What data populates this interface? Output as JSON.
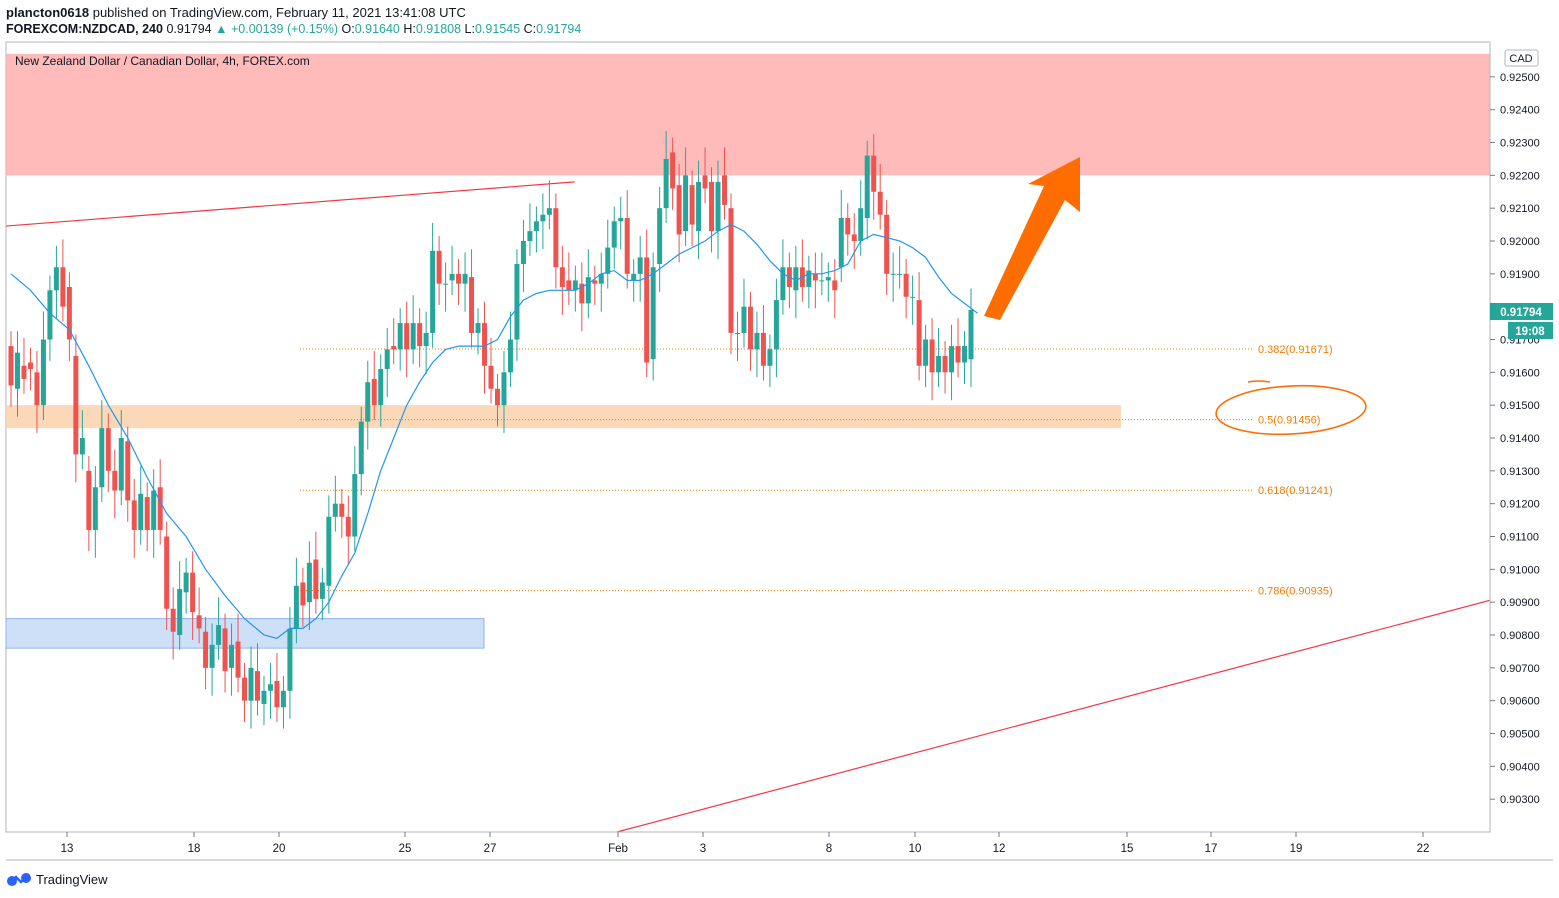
{
  "header": {
    "author": "plancton0618",
    "published_text": "published on TradingView.com, February 11, 2021 13:41:08 UTC",
    "symbol": "FOREXCOM:NZDCAD, 240",
    "last": "0.91794",
    "change": "+0.00139 (+0.15%)",
    "open_label": "O:",
    "open": "0.91640",
    "high_label": "H:",
    "high": "0.91808",
    "low_label": "L:",
    "low": "0.91545",
    "close_label": "C:",
    "close": "0.91794"
  },
  "footer": {
    "brand": "TradingView"
  },
  "colors": {
    "up": "#26a69a",
    "down": "#ef5350",
    "ma": "#2196f3",
    "trendline": "#f23645",
    "resistance_zone": "#ffb3b3",
    "support_zone": "#fad4b0",
    "demand_zone": "#c9dcf7",
    "fib": "#f57c00",
    "arrow": "#ff6d00",
    "price_tag": "#26a69a"
  },
  "chart_data": {
    "type": "candlestick",
    "title": "New Zealand Dollar / Canadian Dollar, 4h, FOREX.com",
    "currency": "CAD",
    "ylim": [
      0.902,
      0.926
    ],
    "y_ticks": [
      "0.92500",
      "0.92400",
      "0.92300",
      "0.92200",
      "0.92100",
      "0.92000",
      "0.91900",
      "0.91700",
      "0.91600",
      "0.91500",
      "0.91400",
      "0.91300",
      "0.91200",
      "0.91100",
      "0.91000",
      "0.90900",
      "0.90800",
      "0.90700",
      "0.90600",
      "0.90500",
      "0.90400",
      "0.90300"
    ],
    "x_ticks": [
      "13",
      "18",
      "20",
      "25",
      "27",
      "Feb",
      "3",
      "8",
      "10",
      "12",
      "15",
      "17",
      "19",
      "22"
    ],
    "last_price": "0.91794",
    "countdown": "19:08",
    "fib_levels": [
      {
        "label": "0.382(0.91671)",
        "price": 0.91671
      },
      {
        "label": "0.5(0.91456)",
        "price": 0.91456
      },
      {
        "label": "0.618(0.91241)",
        "price": 0.91241
      },
      {
        "label": "0.786(0.90935)",
        "price": 0.90935
      }
    ],
    "zones": [
      {
        "name": "resistance",
        "from": 0.922,
        "to": 0.9257
      },
      {
        "name": "support",
        "from": 0.9143,
        "to": 0.915
      },
      {
        "name": "demand",
        "from": 0.9076,
        "to": 0.9085
      }
    ],
    "trendlines": [
      {
        "x": [
          "2021-01-11",
          "2021-01-25"
        ],
        "y": [
          0.9204,
          0.9218
        ]
      },
      {
        "x": [
          "2021-01-26",
          "2021-02-26"
        ],
        "y": [
          0.902,
          0.9126
        ]
      }
    ],
    "candles": [
      [
        0.9168,
        0.9156
      ],
      [
        0.9155,
        0.9166
      ],
      [
        0.9162,
        0.9158
      ],
      [
        0.9163,
        0.9161
      ],
      [
        0.916,
        0.915
      ],
      [
        0.915,
        0.917
      ],
      [
        0.917,
        0.9185
      ],
      [
        0.9185,
        0.9192
      ],
      [
        0.9192,
        0.918
      ],
      [
        0.9186,
        0.917
      ],
      [
        0.9165,
        0.9135
      ],
      [
        0.9135,
        0.914
      ],
      [
        0.913,
        0.9112
      ],
      [
        0.9112,
        0.9125
      ],
      [
        0.9125,
        0.9143
      ],
      [
        0.9143,
        0.913
      ],
      [
        0.913,
        0.9124
      ],
      [
        0.9124,
        0.914
      ],
      [
        0.9139,
        0.9121
      ],
      [
        0.9121,
        0.9112
      ],
      [
        0.9112,
        0.9123
      ],
      [
        0.9122,
        0.9112
      ],
      [
        0.9112,
        0.9124
      ],
      [
        0.9125,
        0.9112
      ],
      [
        0.911,
        0.9088
      ],
      [
        0.9088,
        0.9081
      ],
      [
        0.908,
        0.9094
      ],
      [
        0.9093,
        0.9099
      ],
      [
        0.9099,
        0.9087
      ],
      [
        0.9086,
        0.9082
      ],
      [
        0.9081,
        0.907
      ],
      [
        0.907,
        0.9077
      ],
      [
        0.9077,
        0.9083
      ],
      [
        0.9082,
        0.9069
      ],
      [
        0.907,
        0.9077
      ],
      [
        0.9078,
        0.9067
      ],
      [
        0.9067,
        0.906
      ],
      [
        0.906,
        0.907
      ],
      [
        0.9069,
        0.906
      ],
      [
        0.9059,
        0.9063
      ],
      [
        0.9063,
        0.9065
      ],
      [
        0.9066,
        0.9058
      ],
      [
        0.9058,
        0.9063
      ],
      [
        0.9063,
        0.9082
      ],
      [
        0.9082,
        0.9095
      ],
      [
        0.9096,
        0.9089
      ],
      [
        0.909,
        0.9102
      ],
      [
        0.9103,
        0.9091
      ],
      [
        0.9091,
        0.9096
      ],
      [
        0.9095,
        0.9116
      ],
      [
        0.9116,
        0.912
      ],
      [
        0.912,
        0.9116
      ],
      [
        0.9116,
        0.911
      ],
      [
        0.911,
        0.9129
      ],
      [
        0.9129,
        0.9145
      ],
      [
        0.9145,
        0.9157
      ],
      [
        0.9158,
        0.915
      ],
      [
        0.915,
        0.9161
      ],
      [
        0.9161,
        0.9167
      ],
      [
        0.9168,
        0.9167
      ],
      [
        0.9167,
        0.9175
      ],
      [
        0.9175,
        0.9167
      ],
      [
        0.9167,
        0.9175
      ],
      [
        0.9175,
        0.9168
      ],
      [
        0.9168,
        0.9172
      ],
      [
        0.9172,
        0.9197
      ],
      [
        0.9197,
        0.9187
      ],
      [
        0.9187,
        0.9187
      ],
      [
        0.9188,
        0.919
      ],
      [
        0.919,
        0.9187
      ],
      [
        0.9187,
        0.919
      ],
      [
        0.9189,
        0.9172
      ],
      [
        0.9172,
        0.9175
      ],
      [
        0.9175,
        0.9162
      ],
      [
        0.9162,
        0.9155
      ],
      [
        0.9155,
        0.915
      ],
      [
        0.915,
        0.916
      ],
      [
        0.916,
        0.917
      ],
      [
        0.917,
        0.9193
      ],
      [
        0.9193,
        0.92
      ],
      [
        0.92,
        0.9203
      ],
      [
        0.9203,
        0.9206
      ],
      [
        0.9206,
        0.9208
      ],
      [
        0.9208,
        0.921
      ],
      [
        0.921,
        0.9192
      ],
      [
        0.9192,
        0.9186
      ],
      [
        0.9188,
        0.9185
      ],
      [
        0.9185,
        0.9188
      ],
      [
        0.9187,
        0.9181
      ],
      [
        0.9181,
        0.9189
      ],
      [
        0.9188,
        0.9187
      ],
      [
        0.9187,
        0.919
      ],
      [
        0.919,
        0.9198
      ],
      [
        0.9198,
        0.9206
      ],
      [
        0.9206,
        0.9207
      ],
      [
        0.9207,
        0.919
      ],
      [
        0.9188,
        0.919
      ],
      [
        0.919,
        0.9195
      ],
      [
        0.9195,
        0.9163
      ],
      [
        0.9164,
        0.9192
      ],
      [
        0.9193,
        0.921
      ],
      [
        0.921,
        0.9225
      ],
      [
        0.9227,
        0.9216
      ],
      [
        0.9217,
        0.9202
      ],
      [
        0.9203,
        0.922
      ],
      [
        0.9217,
        0.9205
      ],
      [
        0.9203,
        0.9218
      ],
      [
        0.922,
        0.9216
      ],
      [
        0.9218,
        0.9203
      ],
      [
        0.9203,
        0.9218
      ],
      [
        0.922,
        0.9211
      ],
      [
        0.921,
        0.9172
      ],
      [
        0.9172,
        0.9172
      ],
      [
        0.9172,
        0.918
      ],
      [
        0.918,
        0.9167
      ],
      [
        0.9167,
        0.9172
      ],
      [
        0.9172,
        0.9162
      ],
      [
        0.9162,
        0.9167
      ],
      [
        0.9167,
        0.9182
      ],
      [
        0.9182,
        0.9192
      ],
      [
        0.9192,
        0.9186
      ],
      [
        0.9185,
        0.9192
      ],
      [
        0.9192,
        0.9186
      ],
      [
        0.9186,
        0.9191
      ],
      [
        0.919,
        0.9188
      ],
      [
        0.9188,
        0.9188
      ],
      [
        0.9188,
        0.9189
      ],
      [
        0.9188,
        0.9185
      ],
      [
        0.9192,
        0.9207
      ],
      [
        0.9207,
        0.9202
      ],
      [
        0.9202,
        0.92
      ],
      [
        0.92,
        0.921
      ],
      [
        0.9207,
        0.9226
      ],
      [
        0.9226,
        0.9215
      ],
      [
        0.9215,
        0.9208
      ],
      [
        0.9208,
        0.919
      ],
      [
        0.919,
        0.919
      ],
      [
        0.919,
        0.919
      ],
      [
        0.919,
        0.9183
      ],
      [
        0.9183,
        0.9183
      ],
      [
        0.9182,
        0.9162
      ],
      [
        0.9162,
        0.917
      ],
      [
        0.917,
        0.916
      ],
      [
        0.916,
        0.9165
      ],
      [
        0.9165,
        0.916
      ],
      [
        0.916,
        0.9168
      ],
      [
        0.9168,
        0.9163
      ],
      [
        0.9163,
        0.9168
      ],
      [
        0.9164,
        0.9179
      ]
    ],
    "ma": [
      [
        0,
        0.919
      ],
      [
        3,
        0.9185
      ],
      [
        6,
        0.9178
      ],
      [
        9,
        0.9173
      ],
      [
        12,
        0.9162
      ],
      [
        15,
        0.915
      ],
      [
        18,
        0.914
      ],
      [
        21,
        0.9128
      ],
      [
        24,
        0.9117
      ],
      [
        27,
        0.911
      ],
      [
        30,
        0.91
      ],
      [
        33,
        0.9092
      ],
      [
        36,
        0.9085
      ],
      [
        39,
        0.908
      ],
      [
        41,
        0.9079
      ],
      [
        43,
        0.9082
      ],
      [
        45,
        0.9082
      ],
      [
        47,
        0.9085
      ],
      [
        49,
        0.909
      ],
      [
        51,
        0.9098
      ],
      [
        53,
        0.9105
      ],
      [
        55,
        0.9117
      ],
      [
        57,
        0.913
      ],
      [
        59,
        0.914
      ],
      [
        61,
        0.915
      ],
      [
        63,
        0.9157
      ],
      [
        65,
        0.9163
      ],
      [
        67,
        0.9167
      ],
      [
        69,
        0.9168
      ],
      [
        71,
        0.9168
      ],
      [
        73,
        0.9168
      ],
      [
        75,
        0.917
      ],
      [
        77,
        0.9177
      ],
      [
        79,
        0.9182
      ],
      [
        81,
        0.9184
      ],
      [
        83,
        0.9185
      ],
      [
        85,
        0.9185
      ],
      [
        87,
        0.9185
      ],
      [
        89,
        0.9187
      ],
      [
        91,
        0.919
      ],
      [
        93,
        0.9191
      ],
      [
        95,
        0.9188
      ],
      [
        97,
        0.9188
      ],
      [
        99,
        0.919
      ],
      [
        101,
        0.9193
      ],
      [
        103,
        0.9196
      ],
      [
        105,
        0.9198
      ],
      [
        107,
        0.92
      ],
      [
        109,
        0.9203
      ],
      [
        111,
        0.9205
      ],
      [
        113,
        0.9203
      ],
      [
        115,
        0.9199
      ],
      [
        117,
        0.9194
      ],
      [
        119,
        0.919
      ],
      [
        121,
        0.9188
      ],
      [
        123,
        0.919
      ],
      [
        125,
        0.919
      ],
      [
        127,
        0.9191
      ],
      [
        129,
        0.9193
      ],
      [
        131,
        0.92
      ],
      [
        133,
        0.9202
      ],
      [
        135,
        0.9201
      ],
      [
        137,
        0.92
      ],
      [
        139,
        0.9198
      ],
      [
        141,
        0.9195
      ],
      [
        143,
        0.9189
      ],
      [
        145,
        0.9184
      ],
      [
        147,
        0.9181
      ],
      [
        149,
        0.9178
      ]
    ]
  }
}
